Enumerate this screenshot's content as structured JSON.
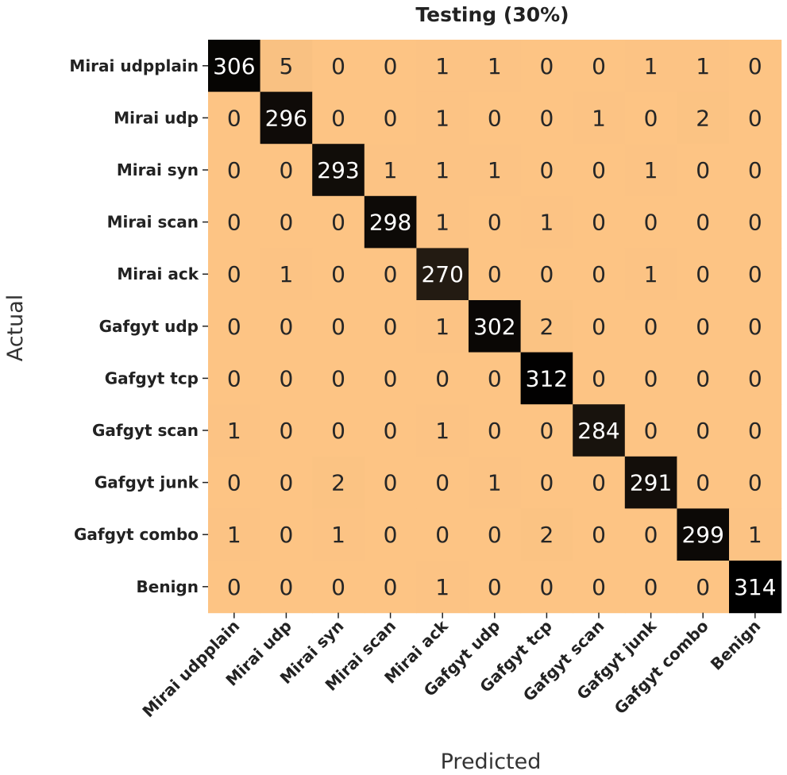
{
  "chart_data": {
    "type": "heatmap",
    "title": "Testing (30%)",
    "xlabel": "Predicted",
    "ylabel": "Actual",
    "x_categories": [
      "Mirai udpplain",
      "Mirai udp",
      "Mirai syn",
      "Mirai scan",
      "Mirai ack",
      "Gafgyt udp",
      "Gafgyt tcp",
      "Gafgyt scan",
      "Gafgyt junk",
      "Gafgyt combo",
      "Benign"
    ],
    "y_categories": [
      "Mirai udpplain",
      "Mirai udp",
      "Mirai syn",
      "Mirai scan",
      "Mirai ack",
      "Gafgyt udp",
      "Gafgyt tcp",
      "Gafgyt scan",
      "Gafgyt junk",
      "Gafgyt combo",
      "Benign"
    ],
    "matrix": [
      [
        306,
        5,
        0,
        0,
        1,
        1,
        0,
        0,
        1,
        1,
        0
      ],
      [
        0,
        296,
        0,
        0,
        1,
        0,
        0,
        1,
        0,
        2,
        0
      ],
      [
        0,
        0,
        293,
        1,
        1,
        1,
        0,
        0,
        1,
        0,
        0
      ],
      [
        0,
        0,
        0,
        298,
        1,
        0,
        1,
        0,
        0,
        0,
        0
      ],
      [
        0,
        1,
        0,
        0,
        270,
        0,
        0,
        0,
        1,
        0,
        0
      ],
      [
        0,
        0,
        0,
        0,
        1,
        302,
        2,
        0,
        0,
        0,
        0
      ],
      [
        0,
        0,
        0,
        0,
        0,
        0,
        312,
        0,
        0,
        0,
        0
      ],
      [
        1,
        0,
        0,
        0,
        1,
        0,
        0,
        284,
        0,
        0,
        0
      ],
      [
        0,
        0,
        2,
        0,
        0,
        1,
        0,
        0,
        291,
        0,
        0
      ],
      [
        1,
        0,
        1,
        0,
        0,
        0,
        2,
        0,
        0,
        299,
        1
      ],
      [
        0,
        0,
        0,
        0,
        1,
        0,
        0,
        0,
        0,
        0,
        314
      ]
    ],
    "colormap": [
      "#fdc484",
      "#000000"
    ],
    "value_range": [
      0,
      314
    ],
    "annotated": true,
    "grid": false
  }
}
